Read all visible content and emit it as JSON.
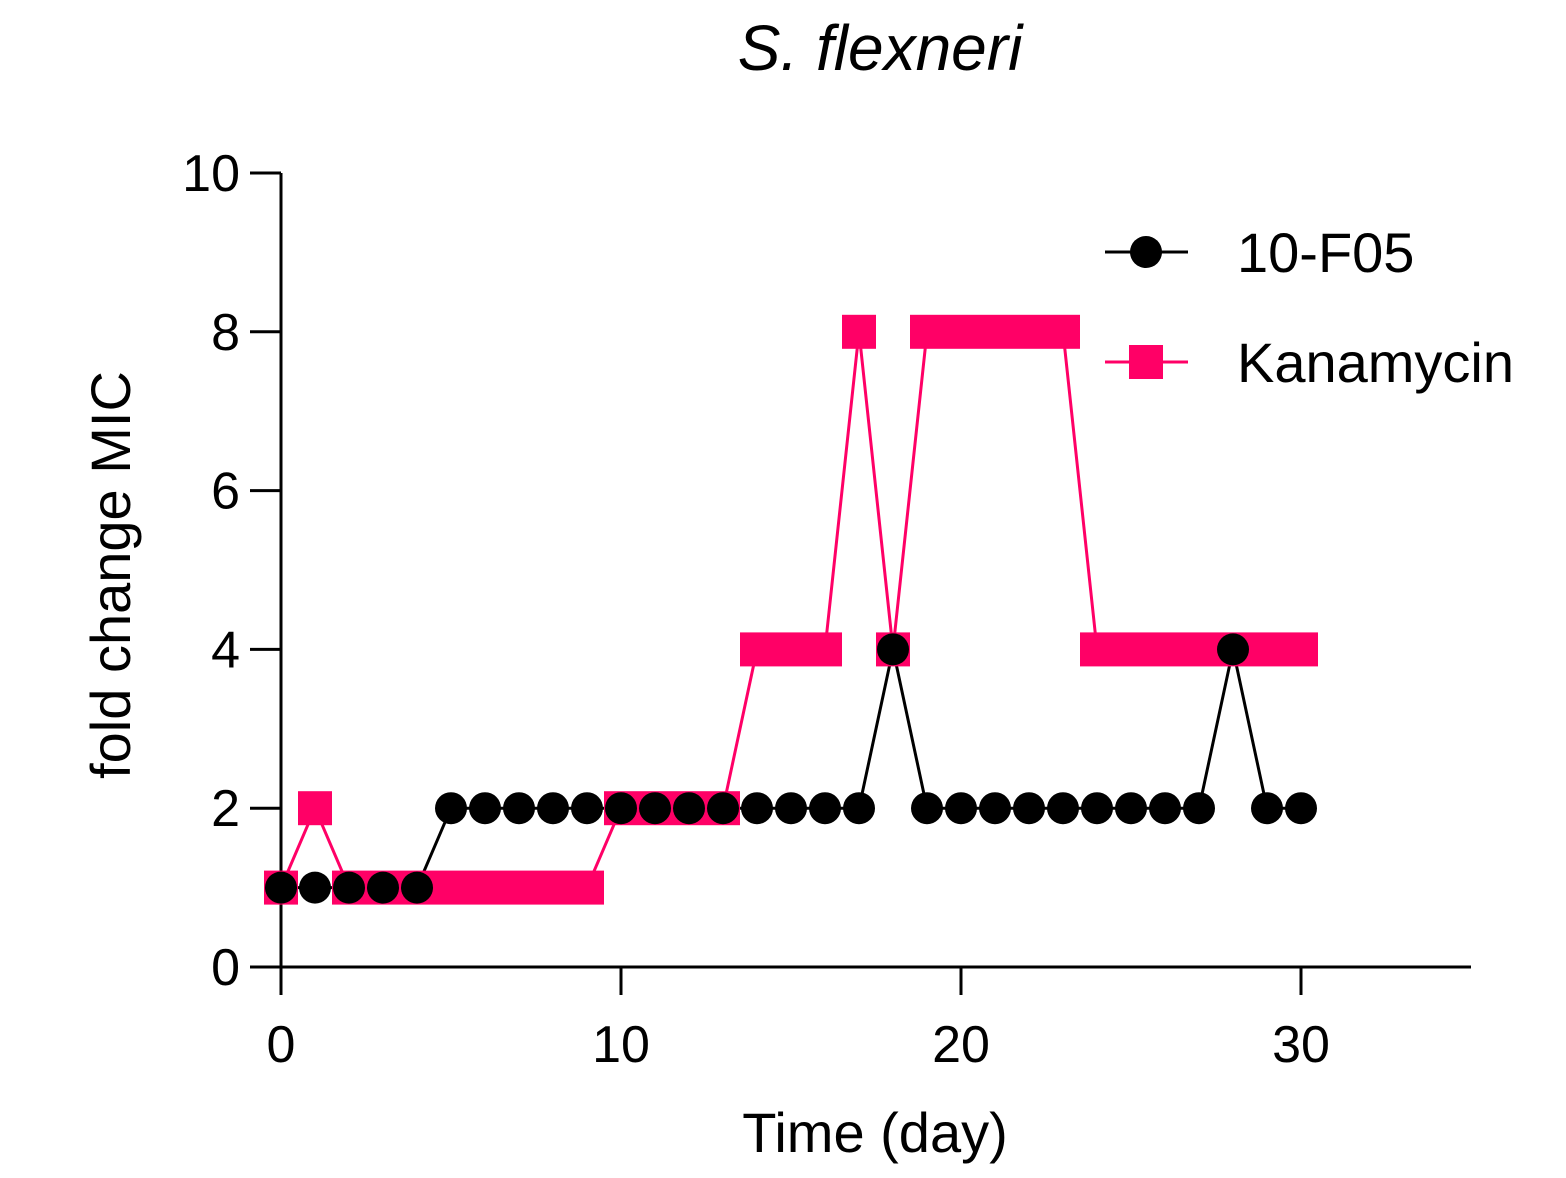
{
  "chart_data": {
    "type": "line",
    "title": "S. flexneri",
    "xlabel": "Time (day)",
    "ylabel": "fold change MIC",
    "xlim": [
      0,
      35
    ],
    "ylim": [
      0,
      10
    ],
    "xticks": [
      0,
      10,
      20,
      30
    ],
    "yticks": [
      0,
      2,
      4,
      6,
      8,
      10
    ],
    "grid": false,
    "legend_position": "top-right",
    "series": [
      {
        "name": "10-F05",
        "marker": "circle",
        "color": "#000000",
        "x": [
          0,
          1,
          2,
          3,
          4,
          5,
          6,
          7,
          8,
          9,
          10,
          11,
          12,
          13,
          14,
          15,
          16,
          17,
          18,
          19,
          20,
          21,
          22,
          23,
          24,
          25,
          26,
          27,
          28,
          29,
          30
        ],
        "values": [
          1,
          1,
          1,
          1,
          1,
          2,
          2,
          2,
          2,
          2,
          2,
          2,
          2,
          2,
          2,
          2,
          2,
          2,
          4,
          2,
          2,
          2,
          2,
          2,
          2,
          2,
          2,
          2,
          4,
          2,
          2
        ]
      },
      {
        "name": "Kanamycin",
        "marker": "square",
        "color": "#ff0066",
        "x": [
          0,
          1,
          2,
          3,
          4,
          5,
          6,
          7,
          8,
          9,
          10,
          11,
          12,
          13,
          14,
          15,
          16,
          17,
          18,
          19,
          20,
          21,
          22,
          23,
          24,
          25,
          26,
          27,
          28,
          29,
          30
        ],
        "values": [
          1,
          2,
          1,
          1,
          1,
          1,
          1,
          1,
          1,
          1,
          2,
          2,
          2,
          2,
          4,
          4,
          4,
          8,
          4,
          8,
          8,
          8,
          8,
          8,
          4,
          4,
          4,
          4,
          4,
          4,
          4
        ]
      }
    ]
  }
}
